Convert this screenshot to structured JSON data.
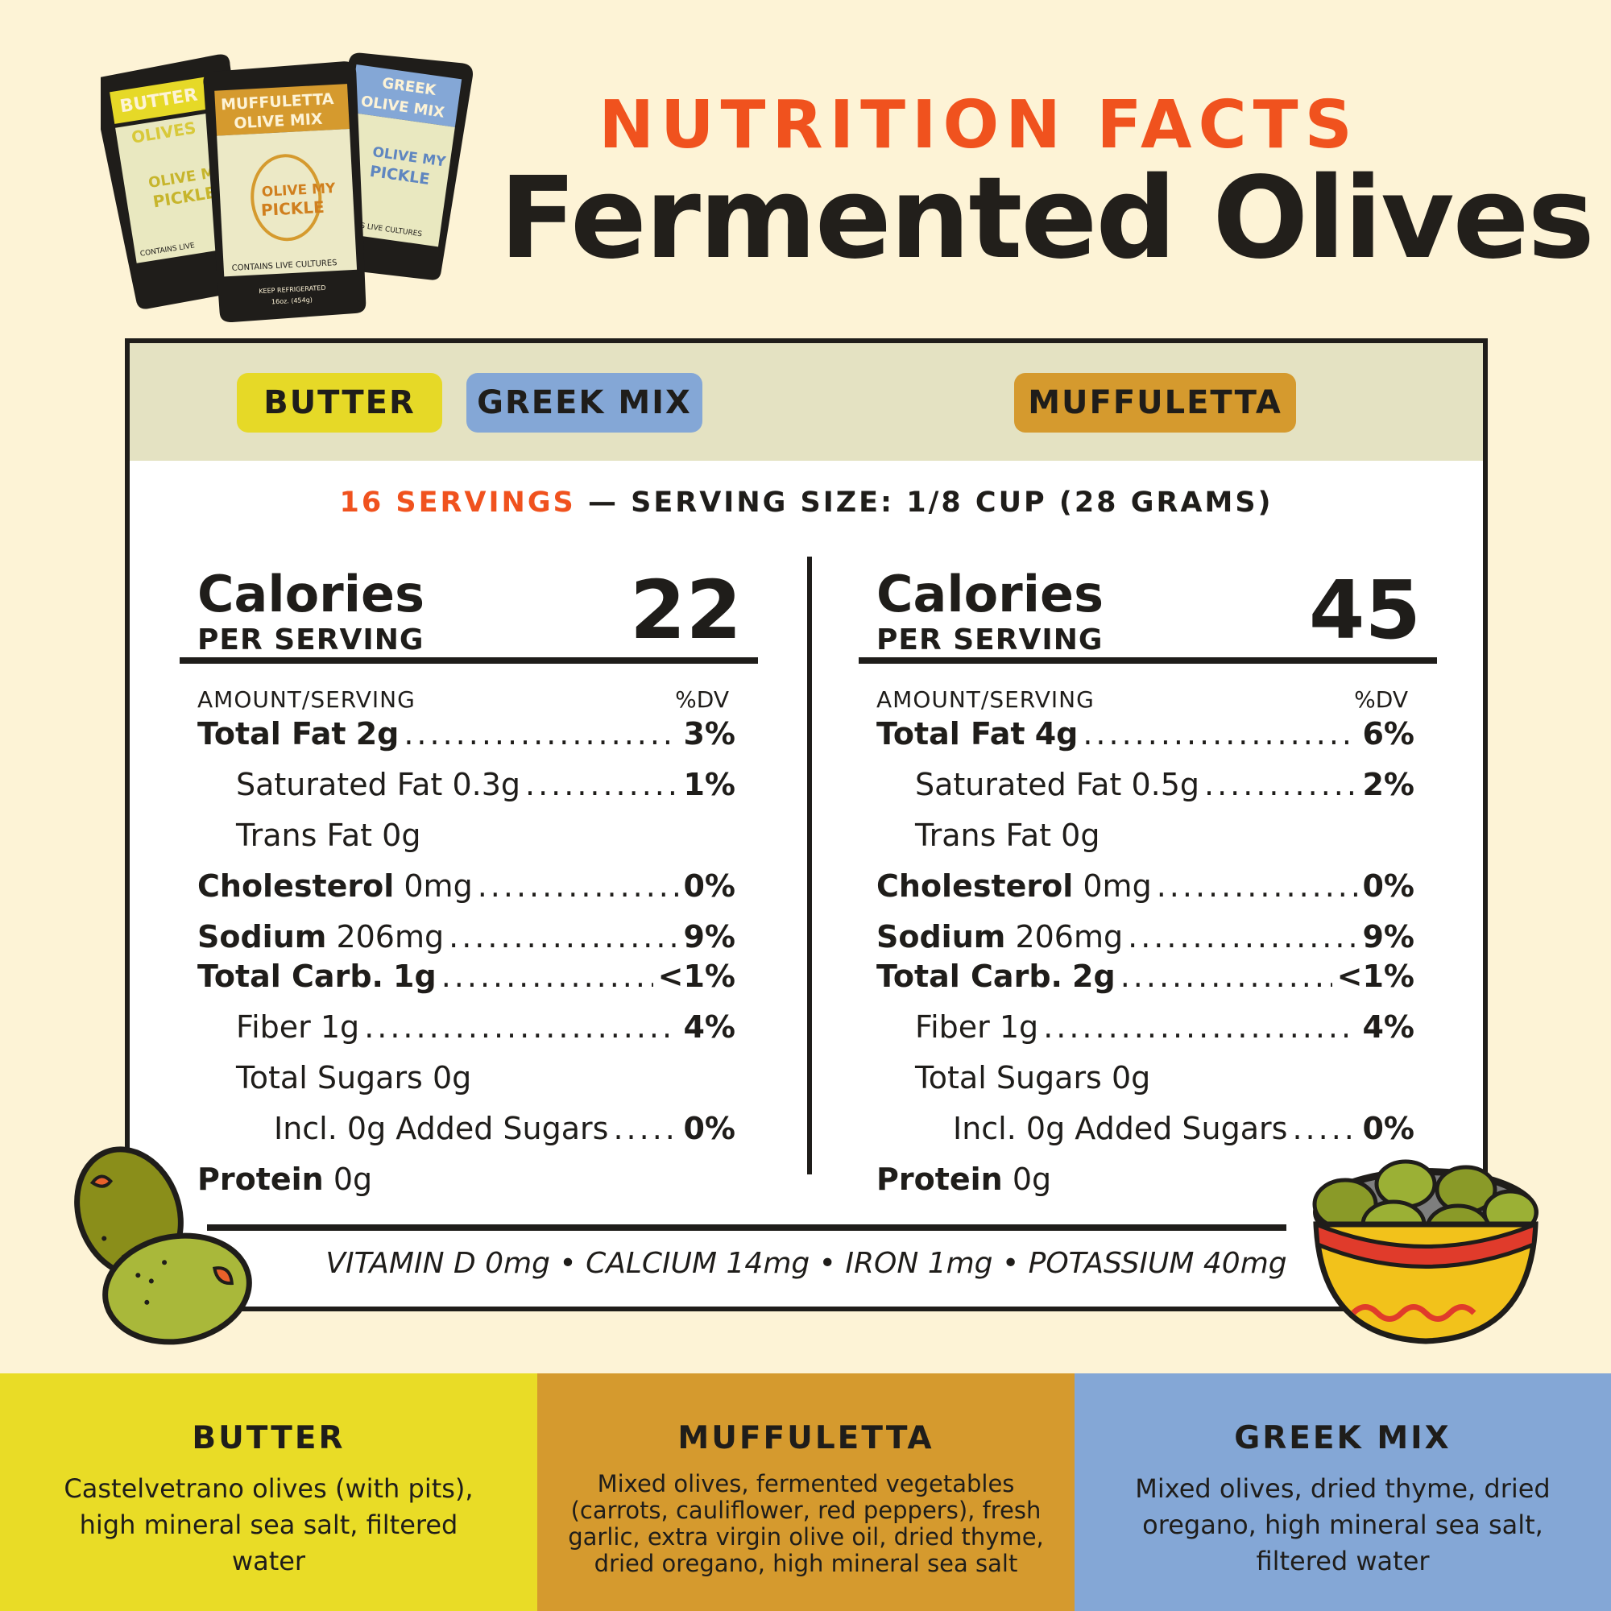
{
  "header": {
    "eyebrow": "NUTRITION FACTS",
    "title": "Fermented Olives"
  },
  "packs": {
    "butter": {
      "line1": "BUTTER",
      "line2": "OLIVES",
      "brand1": "OLIVE MY",
      "brand2": "PICKLE",
      "note": "CONTAINS LIVE"
    },
    "muffuletta": {
      "line1": "MUFFULETTA",
      "line2": "OLIVE MIX",
      "brand1": "OLIVE MY",
      "brand2": "PICKLE",
      "note": "CONTAINS LIVE CULTURES",
      "fine1": "KEEP REFRIGERATED",
      "fine2": "16oz. (454g)"
    },
    "greek": {
      "line1": "GREEK",
      "line2": "OLIVE MIX",
      "brand1": "OLIVE MY",
      "brand2": "PICKLE",
      "note": "IS LIVE CULTURES"
    },
    "colors": {
      "butter": "#e6d927",
      "muffuletta": "#d59a2e",
      "greek": "#84a7d6",
      "bag": "#1f1d1a"
    }
  },
  "tabs": {
    "butter": "BUTTER",
    "greek": "GREEK MIX",
    "muffuletta": "MUFFULETTA"
  },
  "servings": {
    "count": "16 SERVINGS",
    "size": "— SERVING SIZE: 1/8 CUP (28 GRAMS)"
  },
  "left": {
    "calories_label": "Calories",
    "per_serving": "PER SERVING",
    "calories": "22",
    "amount_label": "AMOUNT/SERVING",
    "dv_label": "%DV",
    "rows": [
      {
        "name": "Total Fat",
        "amount": "2g",
        "dv": "3%"
      },
      {
        "name": "Saturated Fat",
        "amount": "0.3g",
        "dv": "1%"
      },
      {
        "name": "Trans Fat",
        "amount": "0g"
      },
      {
        "name": "Cholesterol",
        "amount": "0mg",
        "dv": "0%"
      },
      {
        "name": "Sodium",
        "amount": "206mg",
        "dv": "9%"
      },
      {
        "name": "Total Carb.",
        "amount": "1g",
        "dv": "<1%"
      },
      {
        "name": "Fiber",
        "amount": "1g",
        "dv": "4%"
      },
      {
        "name": "Total Sugars",
        "amount": "0g"
      },
      {
        "name": "Incl. 0g Added Sugars",
        "dv": "0%"
      },
      {
        "name": "Protein",
        "amount": "0g"
      }
    ]
  },
  "right": {
    "calories_label": "Calories",
    "per_serving": "PER SERVING",
    "calories": "45",
    "amount_label": "AMOUNT/SERVING",
    "dv_label": "%DV",
    "rows": [
      {
        "name": "Total Fat",
        "amount": "4g",
        "dv": "6%"
      },
      {
        "name": "Saturated Fat",
        "amount": "0.5g",
        "dv": "2%"
      },
      {
        "name": "Trans Fat",
        "amount": "0g"
      },
      {
        "name": "Cholesterol",
        "amount": "0mg",
        "dv": "0%"
      },
      {
        "name": "Sodium",
        "amount": "206mg",
        "dv": "9%"
      },
      {
        "name": "Total Carb.",
        "amount": "2g",
        "dv": "<1%"
      },
      {
        "name": "Fiber",
        "amount": "1g",
        "dv": "4%"
      },
      {
        "name": "Total Sugars",
        "amount": "0g"
      },
      {
        "name": "Incl. 0g Added Sugars",
        "dv": "0%"
      },
      {
        "name": "Protein",
        "amount": "0g"
      }
    ]
  },
  "vitamins": "VITAMIN D 0mg • CALCIUM 14mg • IRON 1mg • POTASSIUM 40mg",
  "flavors": [
    {
      "name": "BUTTER",
      "ingredients": "Castelvetrano olives (with pits), high mineral sea salt, filtered water"
    },
    {
      "name": "MUFFULETTA",
      "ingredients": "Mixed olives, fermented vegetables (carrots, cauliflower, red peppers), fresh garlic, extra virgin olive oil, dried thyme, dried oregano, high mineral sea salt"
    },
    {
      "name": "GREEK MIX",
      "ingredients": "Mixed olives, dried thyme, dried oregano, high mineral sea salt, filtered water"
    }
  ],
  "colors": {
    "accent": "#f0521e",
    "background": "#fdf3d6",
    "panel_head": "#e4e2c2"
  }
}
